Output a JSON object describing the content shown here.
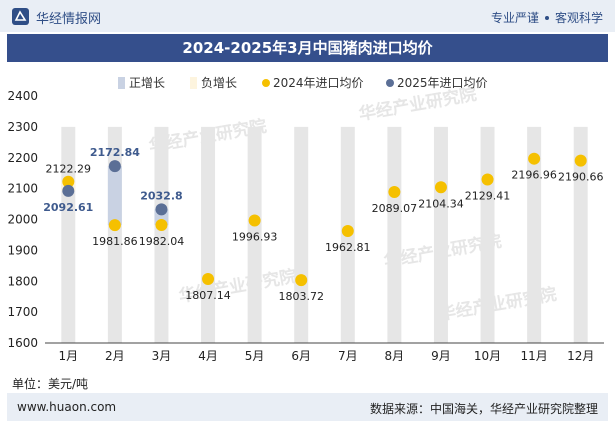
{
  "header": {
    "brand": "华经情报网",
    "tagline_left": "专业严谨",
    "tagline_right": "客观科学"
  },
  "unit_label": "单位：美元/吨",
  "footer": {
    "site": "www.huaon.com",
    "source": "数据来源：中国海关，华经产业研究院整理"
  },
  "watermark": "华经产业研究院",
  "colors": {
    "title_bg": "#354f8c",
    "bar": "#e6e6e6",
    "positive": "#c9d2e3",
    "negative": "#fdf4de",
    "series2024": "#f5c000",
    "series2025": "#5b6f96"
  },
  "chart_data": {
    "type": "scatter",
    "title": "2024-2025年3月中国猪肉进口均价",
    "ylabel": "单位：美元/吨",
    "ylim": [
      1600,
      2400
    ],
    "yticks": [
      1600,
      1700,
      1800,
      1900,
      2000,
      2100,
      2200,
      2300,
      2400
    ],
    "categories": [
      "1月",
      "2月",
      "3月",
      "4月",
      "5月",
      "6月",
      "7月",
      "8月",
      "9月",
      "10月",
      "11月",
      "12月"
    ],
    "legend": [
      "正增长",
      "负增长",
      "2024年进口均价",
      "2025年进口均价"
    ],
    "legend_position": "top",
    "series": [
      {
        "name": "2024年进口均价",
        "values": [
          2122.29,
          1981.86,
          1982.04,
          1807.14,
          1996.93,
          1803.72,
          1962.81,
          2089.07,
          2104.34,
          2129.41,
          2196.96,
          2190.66
        ],
        "labels": [
          "2122.29",
          "1981.86",
          "1982.04",
          "1807.14",
          "1996.93",
          "1803.72",
          "1962.81",
          "2089.07",
          "2104.34",
          "2129.41",
          "2196.96",
          "2190.66"
        ]
      },
      {
        "name": "2025年进口均价",
        "values": [
          2092.61,
          2172.84,
          2032.8
        ],
        "labels": [
          "2092.61",
          "2172.84",
          "2032.8"
        ]
      }
    ]
  }
}
